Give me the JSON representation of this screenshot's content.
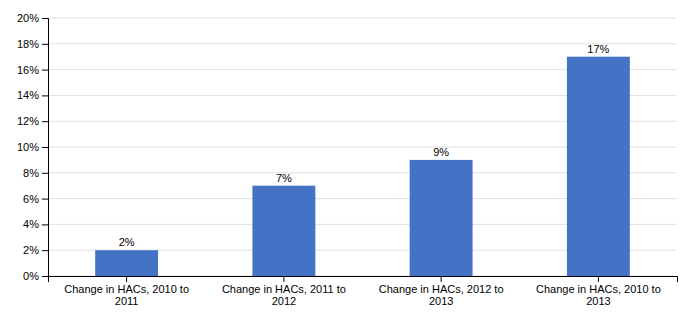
{
  "chart_data": {
    "type": "bar",
    "categories": [
      "Change in HACs, 2010 to\n2011",
      "Change in HACs, 2011 to\n2012",
      "Change in HACs, 2012 to\n2013",
      "Change in HACs, 2010 to\n2013"
    ],
    "values": [
      0.02,
      0.07,
      0.09,
      0.17
    ],
    "value_labels": [
      "2%",
      "7%",
      "9%",
      "17%"
    ],
    "data_labels": true,
    "color": "#4472C4",
    "ylim": [
      0,
      0.2
    ],
    "yticks": [
      {
        "value": 0,
        "label": "0%"
      },
      {
        "value": 0.02,
        "label": "2%"
      },
      {
        "value": 0.04,
        "label": "4%"
      },
      {
        "value": 0.06,
        "label": "6%"
      },
      {
        "value": 0.08,
        "label": "8%"
      },
      {
        "value": 0.1,
        "label": "10%"
      },
      {
        "value": 0.12,
        "label": "12%"
      },
      {
        "value": 0.14,
        "label": "14%"
      },
      {
        "value": 0.16,
        "label": "16%"
      },
      {
        "value": 0.18,
        "label": "18%"
      },
      {
        "value": 0.2,
        "label": "20%"
      }
    ],
    "grid": true
  }
}
